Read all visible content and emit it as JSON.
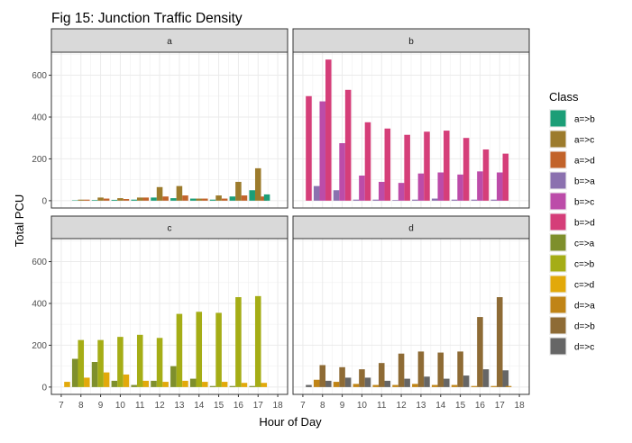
{
  "chart_data": {
    "type": "bar",
    "title": "Fig 15: Junction Traffic Density",
    "xlabel": "Hour of Day",
    "ylabel": "Total PCU",
    "legend_title": "Class",
    "legend_position": "right",
    "grid": true,
    "x": [
      7,
      8,
      9,
      10,
      11,
      12,
      13,
      14,
      15,
      16,
      17
    ],
    "x_ticks": [
      "7",
      "8",
      "9",
      "10",
      "11",
      "12",
      "13",
      "14",
      "15",
      "16",
      "17",
      "18"
    ],
    "xlim": [
      6.5,
      18.5
    ],
    "ylim": [
      -35,
      710
    ],
    "y_ticks": [
      0,
      200,
      400,
      600
    ],
    "classes": [
      {
        "name": "a=>b",
        "color": "#1B9E77"
      },
      {
        "name": "a=>c",
        "color": "#9C7B2C"
      },
      {
        "name": "a=>d",
        "color": "#C2632A"
      },
      {
        "name": "b=>a",
        "color": "#8B71AF"
      },
      {
        "name": "b=>c",
        "color": "#BC4CA9"
      },
      {
        "name": "b=>d",
        "color": "#D53E79"
      },
      {
        "name": "c=>a",
        "color": "#7E8F2C"
      },
      {
        "name": "c=>b",
        "color": "#A5AD16"
      },
      {
        "name": "c=>d",
        "color": "#E2A90A"
      },
      {
        "name": "d=>a",
        "color": "#C08416"
      },
      {
        "name": "d=>b",
        "color": "#8E6B35"
      },
      {
        "name": "d=>c",
        "color": "#666666"
      }
    ],
    "panels": [
      {
        "label": "a",
        "series": [
          {
            "name": "a=>b",
            "values": [
              0,
              2,
              3,
              4,
              5,
              15,
              12,
              10,
              5,
              20,
              50
            ]
          },
          {
            "name": "a=>c",
            "values": [
              0,
              5,
              15,
              12,
              15,
              65,
              70,
              10,
              25,
              90,
              155
            ]
          },
          {
            "name": "a=>d",
            "values": [
              0,
              5,
              10,
              8,
              15,
              20,
              25,
              10,
              10,
              25,
              20
            ]
          }
        ],
        "extra": [
          {
            "name": "a=>b",
            "x": 17.45,
            "value": 30
          }
        ]
      },
      {
        "label": "b",
        "series": [
          {
            "name": "b=>a",
            "values": [
              0,
              70,
              50,
              5,
              5,
              3,
              5,
              10,
              5,
              5,
              5
            ]
          },
          {
            "name": "b=>c",
            "values": [
              0,
              475,
              275,
              120,
              90,
              85,
              130,
              135,
              125,
              140,
              135
            ]
          },
          {
            "name": "b=>d",
            "values": [
              500,
              675,
              530,
              375,
              345,
              315,
              330,
              335,
              300,
              245,
              225
            ]
          }
        ]
      },
      {
        "label": "c",
        "series": [
          {
            "name": "c=>a",
            "values": [
              0,
              135,
              120,
              30,
              10,
              30,
              100,
              40,
              5,
              5,
              5
            ]
          },
          {
            "name": "c=>b",
            "values": [
              0,
              225,
              225,
              240,
              250,
              235,
              350,
              360,
              355,
              430,
              435
            ]
          },
          {
            "name": "c=>d",
            "values": [
              25,
              45,
              70,
              60,
              30,
              25,
              30,
              25,
              25,
              20,
              20
            ]
          }
        ]
      },
      {
        "label": "d",
        "series": [
          {
            "name": "d=>a",
            "values": [
              0,
              35,
              25,
              15,
              10,
              10,
              15,
              10,
              10,
              5,
              5
            ]
          },
          {
            "name": "d=>b",
            "values": [
              0,
              105,
              95,
              85,
              115,
              160,
              170,
              165,
              170,
              335,
              430
            ]
          },
          {
            "name": "d=>c",
            "values": [
              10,
              30,
              45,
              45,
              30,
              40,
              50,
              40,
              55,
              85,
              80
            ]
          }
        ],
        "extra": [
          {
            "name": "d=>a",
            "x": 17.45,
            "value": 5
          }
        ]
      }
    ]
  }
}
